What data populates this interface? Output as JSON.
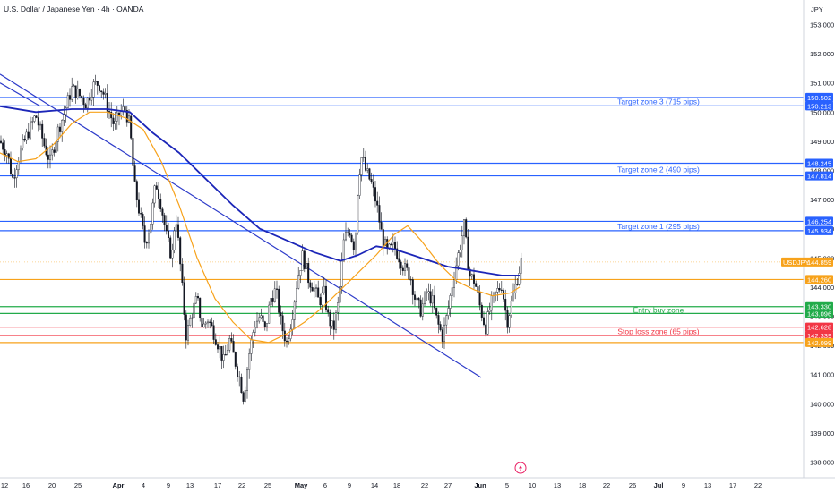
{
  "header": {
    "title": "U.S. Dollar / Japanese Yen · 4h · OANDA",
    "currency": "JPY"
  },
  "chart_data": {
    "type": "candlestick",
    "ylim": [
      137.9,
      153.7
    ],
    "yticks": [
      138,
      139,
      140,
      141,
      142,
      143,
      144,
      145,
      146,
      147,
      148,
      149,
      150,
      151,
      152,
      153
    ],
    "x_tick_labels": [
      "12",
      "16",
      "20",
      "25",
      "Apr",
      "4",
      "9",
      "13",
      "17",
      "22",
      "25",
      "May",
      "6",
      "9",
      "14",
      "18",
      "22",
      "27",
      "Jun",
      "5",
      "10",
      "13",
      "18",
      "22",
      "26",
      "Jul",
      "9",
      "13",
      "17",
      "22"
    ],
    "symbol": "USDJPY",
    "last_price": 144.859,
    "levels": [
      {
        "value": 150.502,
        "label": "150.502",
        "color": "#2962ff"
      },
      {
        "value": 150.213,
        "label": "150.213",
        "color": "#2962ff"
      },
      {
        "value": 148.245,
        "label": "148.245",
        "color": "#2962ff"
      },
      {
        "value": 147.814,
        "label": "147.814",
        "color": "#2962ff"
      },
      {
        "value": 146.254,
        "label": "146.254",
        "color": "#2962ff"
      },
      {
        "value": 145.934,
        "label": "145.934",
        "color": "#2962ff"
      },
      {
        "value": 144.26,
        "label": "144.260",
        "color": "#f7a21b"
      },
      {
        "value": 143.33,
        "label": "143.330",
        "color": "#22ab4a"
      },
      {
        "value": 143.096,
        "label": "143.096",
        "color": "#22ab4a"
      },
      {
        "value": 142.628,
        "label": "142.628",
        "color": "#f23645"
      },
      {
        "value": 142.339,
        "label": "142.339",
        "color": "#f23645"
      },
      {
        "value": 142.099,
        "label": "142.099",
        "color": "#f7a21b"
      }
    ],
    "zones": [
      {
        "label": "Target zone 3 (715 pips)",
        "value": 150.36,
        "color": "#2962ff"
      },
      {
        "label": "Target zone 2 (490 pips)",
        "value": 148.03,
        "color": "#2962ff"
      },
      {
        "label": "Target zone 1 (295 pips)",
        "value": 146.09,
        "color": "#2962ff"
      },
      {
        "label": "Entry buy zone",
        "value": 143.21,
        "color": "#22ab4a"
      },
      {
        "label": "Stop loss zone (65 pips)",
        "value": 142.48,
        "color": "#f23645"
      }
    ],
    "price_path": [
      [
        0,
        149.0
      ],
      [
        8,
        148.6
      ],
      [
        14,
        147.7
      ],
      [
        22,
        148.6
      ],
      [
        30,
        149.2
      ],
      [
        40,
        149.9
      ],
      [
        50,
        148.8
      ],
      [
        56,
        148.3
      ],
      [
        64,
        149.3
      ],
      [
        72,
        150.0
      ],
      [
        80,
        150.8
      ],
      [
        88,
        150.6
      ],
      [
        96,
        150.3
      ],
      [
        104,
        150.9
      ],
      [
        110,
        151.0
      ],
      [
        116,
        150.6
      ],
      [
        122,
        150.0
      ],
      [
        128,
        149.5
      ],
      [
        134,
        150.0
      ],
      [
        140,
        150.1
      ],
      [
        145,
        149.5
      ],
      [
        150,
        147.5
      ],
      [
        156,
        146.5
      ],
      [
        162,
        145.5
      ],
      [
        168,
        146.2
      ],
      [
        174,
        147.6
      ],
      [
        180,
        146.8
      ],
      [
        186,
        145.7
      ],
      [
        192,
        145.0
      ],
      [
        196,
        146.6
      ],
      [
        200,
        145.2
      ],
      [
        204,
        143.7
      ],
      [
        208,
        142.3
      ],
      [
        214,
        143.1
      ],
      [
        220,
        143.6
      ],
      [
        226,
        142.6
      ],
      [
        232,
        142.9
      ],
      [
        238,
        142.5
      ],
      [
        244,
        142.0
      ],
      [
        250,
        141.4
      ],
      [
        256,
        142.2
      ],
      [
        262,
        141.5
      ],
      [
        268,
        140.8
      ],
      [
        272,
        140.2
      ],
      [
        278,
        141.7
      ],
      [
        284,
        142.7
      ],
      [
        290,
        143.0
      ],
      [
        296,
        142.5
      ],
      [
        302,
        143.6
      ],
      [
        308,
        143.9
      ],
      [
        314,
        142.7
      ],
      [
        320,
        142.1
      ],
      [
        326,
        143.0
      ],
      [
        332,
        144.3
      ],
      [
        338,
        145.1
      ],
      [
        344,
        144.3
      ],
      [
        350,
        144.0
      ],
      [
        356,
        143.5
      ],
      [
        362,
        143.8
      ],
      [
        366,
        143.0
      ],
      [
        372,
        142.5
      ],
      [
        378,
        143.5
      ],
      [
        384,
        145.6
      ],
      [
        390,
        146.0
      ],
      [
        396,
        145.3
      ],
      [
        400,
        147.8
      ],
      [
        404,
        148.5
      ],
      [
        408,
        148.0
      ],
      [
        414,
        147.6
      ],
      [
        420,
        146.9
      ],
      [
        426,
        145.8
      ],
      [
        432,
        145.2
      ],
      [
        440,
        145.4
      ],
      [
        446,
        145.0
      ],
      [
        452,
        144.6
      ],
      [
        458,
        144.4
      ],
      [
        464,
        143.5
      ],
      [
        470,
        143.2
      ],
      [
        476,
        143.8
      ],
      [
        482,
        143.6
      ],
      [
        488,
        142.8
      ],
      [
        494,
        142.3
      ],
      [
        500,
        143.2
      ],
      [
        506,
        144.3
      ],
      [
        512,
        145.2
      ],
      [
        518,
        146.1
      ],
      [
        524,
        144.4
      ],
      [
        530,
        144.2
      ],
      [
        536,
        143.3
      ],
      [
        542,
        142.6
      ],
      [
        548,
        143.4
      ],
      [
        554,
        143.8
      ],
      [
        560,
        144.1
      ],
      [
        566,
        142.8
      ],
      [
        572,
        143.6
      ],
      [
        578,
        144.4
      ],
      [
        582,
        144.9
      ]
    ],
    "moving_averages": [
      {
        "color": "#1c26b8",
        "points": [
          [
            0,
            150.2
          ],
          [
            40,
            150.0
          ],
          [
            80,
            150.1
          ],
          [
            120,
            150.1
          ],
          [
            145,
            150.0
          ],
          [
            170,
            149.3
          ],
          [
            200,
            148.6
          ],
          [
            230,
            147.7
          ],
          [
            260,
            146.8
          ],
          [
            290,
            146.0
          ],
          [
            320,
            145.6
          ],
          [
            350,
            145.2
          ],
          [
            380,
            144.9
          ],
          [
            400,
            145.1
          ],
          [
            420,
            145.4
          ],
          [
            440,
            145.3
          ],
          [
            460,
            145.1
          ],
          [
            480,
            144.9
          ],
          [
            500,
            144.7
          ],
          [
            520,
            144.6
          ],
          [
            540,
            144.5
          ],
          [
            560,
            144.4
          ],
          [
            580,
            144.4
          ]
        ]
      },
      {
        "color": "#f7a21b",
        "points": [
          [
            0,
            148.6
          ],
          [
            20,
            148.3
          ],
          [
            40,
            148.4
          ],
          [
            60,
            148.9
          ],
          [
            80,
            149.6
          ],
          [
            100,
            150.0
          ],
          [
            120,
            150.0
          ],
          [
            140,
            149.8
          ],
          [
            160,
            149.4
          ],
          [
            180,
            148.3
          ],
          [
            200,
            146.8
          ],
          [
            220,
            145.0
          ],
          [
            240,
            143.6
          ],
          [
            260,
            142.8
          ],
          [
            280,
            142.2
          ],
          [
            300,
            142.1
          ],
          [
            320,
            142.4
          ],
          [
            340,
            142.8
          ],
          [
            360,
            143.3
          ],
          [
            380,
            143.9
          ],
          [
            400,
            144.5
          ],
          [
            420,
            145.1
          ],
          [
            440,
            145.8
          ],
          [
            455,
            146.1
          ],
          [
            470,
            145.6
          ],
          [
            490,
            144.8
          ],
          [
            510,
            144.2
          ],
          [
            530,
            143.9
          ],
          [
            550,
            143.7
          ],
          [
            570,
            143.8
          ],
          [
            580,
            144.0
          ]
        ]
      }
    ],
    "trendlines": [
      {
        "color": "#2d3bc9",
        "from": [
          0,
          151.3
        ],
        "to": [
          537,
          140.9
        ]
      },
      {
        "color": "#2d3bc9",
        "from": [
          0,
          151.0
        ],
        "to": [
          45,
          150.2
        ]
      }
    ]
  }
}
